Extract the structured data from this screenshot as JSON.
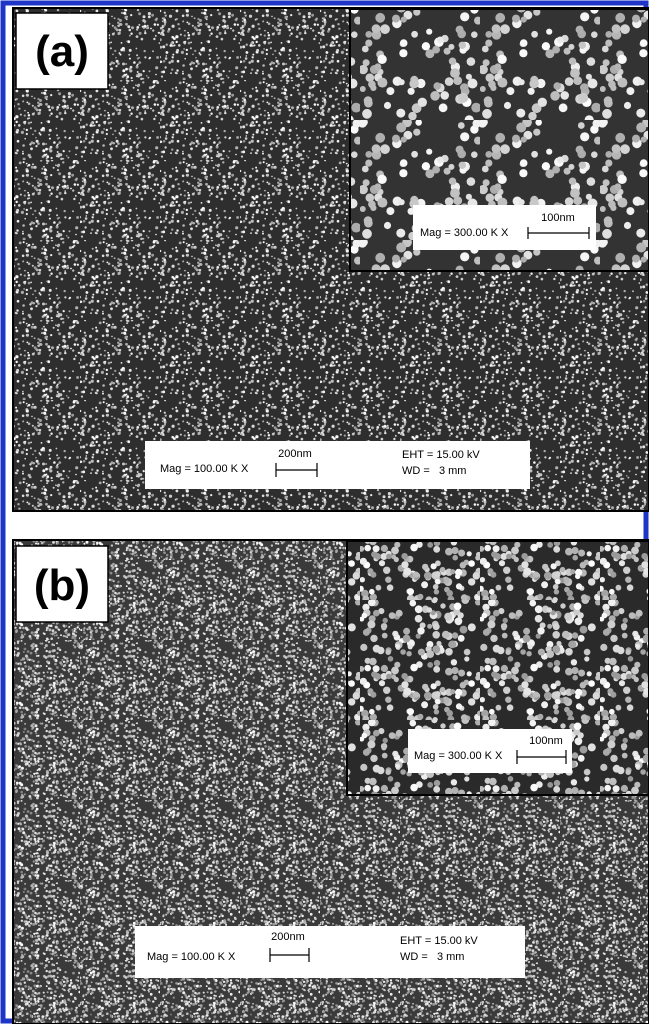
{
  "panels": [
    {
      "label": "(a)",
      "inset": {
        "mag": "Mag = 300.00 K X",
        "scale": "100nm"
      },
      "info": {
        "mag": "Mag = 100.00 K X",
        "scale": "200nm",
        "eht": "EHT = 15.00 kV",
        "wd": "WD =   3 mm"
      }
    },
    {
      "label": "(b)",
      "inset": {
        "mag": "Mag = 300.00 K X",
        "scale": "100nm"
      },
      "info": {
        "mag": "Mag = 100.00 K X",
        "scale": "200nm",
        "eht": "EHT = 15.00 kV",
        "wd": "WD =   3 mm"
      }
    }
  ]
}
